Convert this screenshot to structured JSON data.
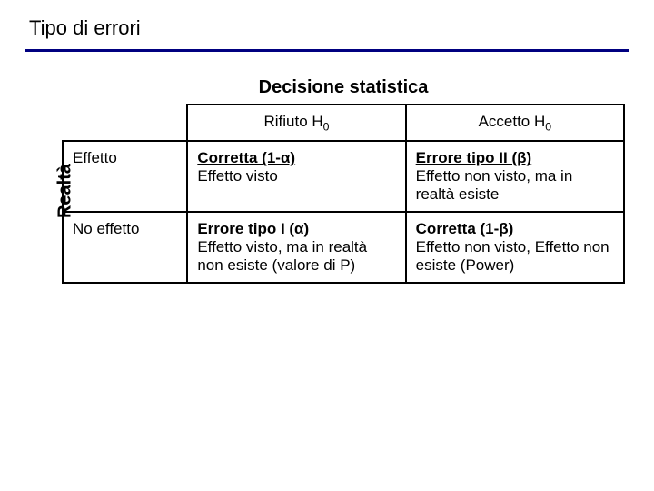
{
  "title": "Tipo di errori",
  "rule_color": "#000080",
  "decision_header": "Decisione statistica",
  "side_label": "Realtà",
  "columns": {
    "reject": {
      "label_pre": "Rifiuto H",
      "sub": "0"
    },
    "accept": {
      "label_pre": "Accetto H",
      "sub": "0"
    }
  },
  "rows": {
    "effect": {
      "label": "Effetto",
      "reject": {
        "headline": "Corretta (1-α)",
        "body": "Effetto visto"
      },
      "accept": {
        "headline": "Errore tipo II (β)",
        "body": "Effetto non visto, ma in realtà esiste"
      }
    },
    "noeffect": {
      "label": "No effetto",
      "reject": {
        "headline": "Errore tipo I (α)",
        "body": "Effetto visto, ma in realtà non esiste (valore di P)"
      },
      "accept": {
        "headline": "Corretta (1-β)",
        "body": "Effetto non visto, Effetto non esiste (Power)"
      }
    }
  },
  "colors": {
    "rule": "#000080",
    "border": "#000000",
    "text": "#000000",
    "background": "#ffffff"
  },
  "fontsize": {
    "title": 22,
    "decision_header": 20,
    "side_label": 20,
    "cell": 17
  }
}
